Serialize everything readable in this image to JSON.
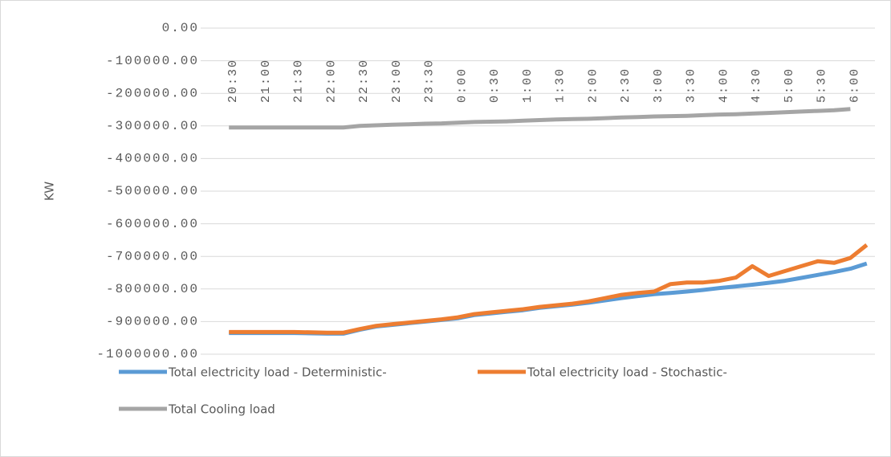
{
  "chart_data": {
    "type": "line",
    "y_label": "KW",
    "categories": [
      "20:30",
      null,
      "21:00",
      null,
      "21:30",
      null,
      "22:00",
      null,
      "22:30",
      null,
      "23:00",
      null,
      "23:30",
      null,
      "0:00",
      null,
      "0:30",
      null,
      "1:00",
      null,
      "1:30",
      null,
      "2:00",
      null,
      "2:30",
      null,
      "3:00",
      null,
      "3:30",
      null,
      "4:00",
      null,
      "4:30",
      null,
      "5:00",
      null,
      "5:30",
      null,
      "6:00",
      null
    ],
    "series": [
      {
        "name": "Total electricity load - Deterministic-",
        "color": "#5b9bd5",
        "values": [
          -935000,
          -935000,
          -935000,
          -935000,
          -935000,
          -936000,
          -937000,
          -937000,
          -925000,
          -915000,
          -910000,
          -905000,
          -900000,
          -895000,
          -890000,
          -880000,
          -875000,
          -870000,
          -865000,
          -858000,
          -853000,
          -848000,
          -842000,
          -835000,
          -828000,
          -822000,
          -816000,
          -812000,
          -808000,
          -803000,
          -797000,
          -792000,
          -787000,
          -781000,
          -775000,
          -766000,
          -757000,
          -748000,
          -738000,
          -722000
        ]
      },
      {
        "name": "Total electricity load - Stochastic-",
        "color": "#ed7d31",
        "values": [
          -932000,
          -932000,
          -932000,
          -932000,
          -932000,
          -933000,
          -934000,
          -934000,
          -923000,
          -913000,
          -908000,
          -903000,
          -898000,
          -893000,
          -887000,
          -877000,
          -872000,
          -867000,
          -862000,
          -855000,
          -850000,
          -845000,
          -838000,
          -828000,
          -818000,
          -812000,
          -808000,
          -785000,
          -780000,
          -780000,
          -775000,
          -765000,
          -730000,
          -760000,
          -745000,
          -730000,
          -715000,
          -720000,
          -705000,
          -665000
        ]
      },
      {
        "name": "Total Cooling load",
        "color": "#a5a5a5",
        "values": [
          -305000,
          -305000,
          -305000,
          -305000,
          -305000,
          -305000,
          -305000,
          -305000,
          -300000,
          -298000,
          -296000,
          -295000,
          -293000,
          -292000,
          -290000,
          -288000,
          -287000,
          -286000,
          -284000,
          -282000,
          -280000,
          -279000,
          -278000,
          -276000,
          -274000,
          -273000,
          -271000,
          -270000,
          -269000,
          -267000,
          -265000,
          -264000,
          -262000,
          -260000,
          -258000,
          -256000,
          -254000,
          -252000,
          -248000,
          null
        ]
      }
    ],
    "ylim": [
      -1000000,
      0
    ],
    "yticks": [
      {
        "value": 0,
        "label": "0.00"
      },
      {
        "value": -100000,
        "label": "-100000.00"
      },
      {
        "value": -200000,
        "label": "-200000.00"
      },
      {
        "value": -300000,
        "label": "-300000.00"
      },
      {
        "value": -400000,
        "label": "-400000.00"
      },
      {
        "value": -500000,
        "label": "-500000.00"
      },
      {
        "value": -600000,
        "label": "-600000.00"
      },
      {
        "value": -700000,
        "label": "-700000.00"
      },
      {
        "value": -800000,
        "label": "-800000.00"
      },
      {
        "value": -900000,
        "label": "-900000.00"
      },
      {
        "value": -1000000,
        "label": "-1000000.00"
      }
    ],
    "grid": true,
    "legend": "bottom"
  }
}
